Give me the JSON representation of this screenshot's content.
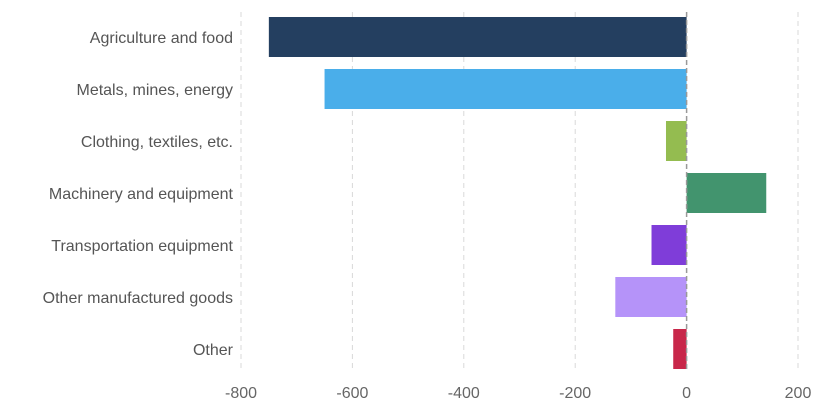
{
  "chart_data": {
    "type": "bar",
    "orientation": "horizontal",
    "title": "",
    "xlabel": "",
    "ylabel": "",
    "categories": [
      "Agriculture and food",
      "Metals, mines, energy",
      "Clothing, textiles, etc.",
      "Machinery and equipment",
      "Transportation equipment",
      "Other manufactured goods",
      "Other"
    ],
    "values": [
      -750,
      -650,
      -37,
      143,
      -63,
      -128,
      -24
    ],
    "colors": [
      "#243f60",
      "#4aaeea",
      "#94bc50",
      "#42946e",
      "#7f3dd9",
      "#b593f9",
      "#c8274a"
    ],
    "xlim": [
      -800,
      200
    ],
    "xticks": [
      -800,
      -600,
      -400,
      -200,
      0,
      200
    ],
    "xtick_labels": [
      "-800",
      "-600",
      "-400",
      "-200",
      "0",
      "200"
    ],
    "grid": true,
    "legend": "none"
  }
}
